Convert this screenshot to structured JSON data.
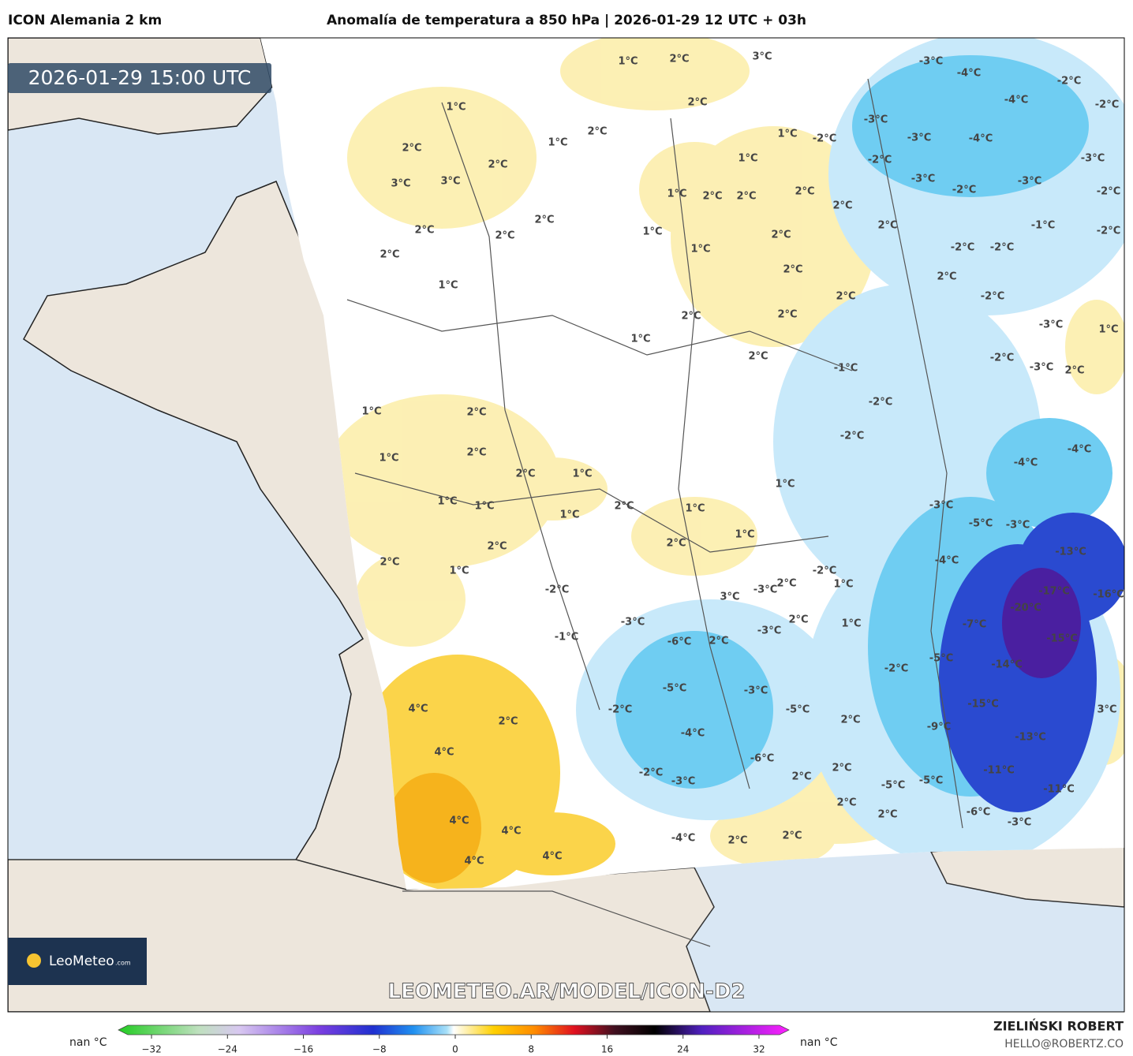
{
  "header": {
    "model": "ICON Alemania 2 km",
    "title": "Anomalía de temperatura a 850 hPa | 2026-01-29 12 UTC + 03h"
  },
  "map": {
    "valid_time": "2026-01-29 15:00 UTC",
    "watermark": "LEOMETEO.AR/MODEL/ICON-D2",
    "logo": {
      "name": "LeoMeteo",
      "suffix": ".com"
    },
    "labels": [
      "1°C",
      "2°C",
      "3°C",
      "-3°C",
      "-4°C",
      "-2°C",
      "1°C",
      "2°C",
      "-4°C",
      "-2°C",
      "2°C",
      "1°C",
      "-3°C",
      "-3°C",
      "-4°C",
      "-2°C",
      "2°C",
      "1°C",
      "2°C",
      "1°C",
      "-2°C",
      "-3°C",
      "3°C",
      "3°C",
      "-3°C",
      "-3°C",
      "-2°C",
      "-2°C",
      "1°C",
      "2°C",
      "2°C",
      "2°C",
      "2°C",
      "2°C",
      "2°C",
      "2°C",
      "1°C",
      "2°C",
      "2°C",
      "-1°C",
      "-2°C",
      "2°C",
      "1°C",
      "-2°C",
      "-2°C",
      "2°C",
      "2°C",
      "1°C",
      "2°C",
      "-2°C",
      "2°C",
      "2°C",
      "-3°C",
      "1°C",
      "1°C",
      "2°C",
      "-2°C",
      "-1°C",
      "-3°C",
      "2°C",
      "-2°C",
      "1°C",
      "2°C",
      "-2°C",
      "2°C",
      "1°C",
      "-4°C",
      "-4°C",
      "2°C",
      "1°C",
      "1°C",
      "1°C",
      "1°C",
      "2°C",
      "1°C",
      "-3°C",
      "1°C",
      "-5°C",
      "-3°C",
      "1°C",
      "2°C",
      "2°C",
      "-13°C",
      "2°C",
      "-4°C",
      "1°C",
      "-2°C",
      "2°C",
      "1°C",
      "-2°C",
      "-3°C",
      "-17°C",
      "-16°C",
      "3°C",
      "-20°C",
      "2°C",
      "1°C",
      "-3°C",
      "-7°C",
      "-3°C",
      "-1°C",
      "-6°C",
      "2°C",
      "-15°C",
      "-5°C",
      "-14°C",
      "-2°C",
      "-5°C",
      "-3°C",
      "4°C",
      "-15°C",
      "-2°C",
      "-5°C",
      "3°C",
      "2°C",
      "2°C",
      "-9°C",
      "-4°C",
      "-13°C",
      "4°C",
      "-6°C",
      "2°C",
      "-2°C",
      "-11°C",
      "-3°C",
      "2°C",
      "-5°C",
      "-5°C",
      "-11°C",
      "2°C",
      "-6°C",
      "2°C",
      "4°C",
      "-3°C",
      "4°C",
      "2°C",
      "-4°C",
      "2°C",
      "4°C",
      "4°C"
    ]
  },
  "colorbar": {
    "unit_left": "nan °C",
    "unit_right": "nan °C",
    "ticks": [
      {
        "value": -32,
        "label": "−32"
      },
      {
        "value": -24,
        "label": "−24"
      },
      {
        "value": -16,
        "label": "−16"
      },
      {
        "value": -8,
        "label": "−8"
      },
      0,
      8,
      16,
      24,
      32
    ]
  },
  "footer": {
    "author": "ZIELIŃSKI ROBERT",
    "contact": "HELLO@ROBERTZ.CO"
  }
}
